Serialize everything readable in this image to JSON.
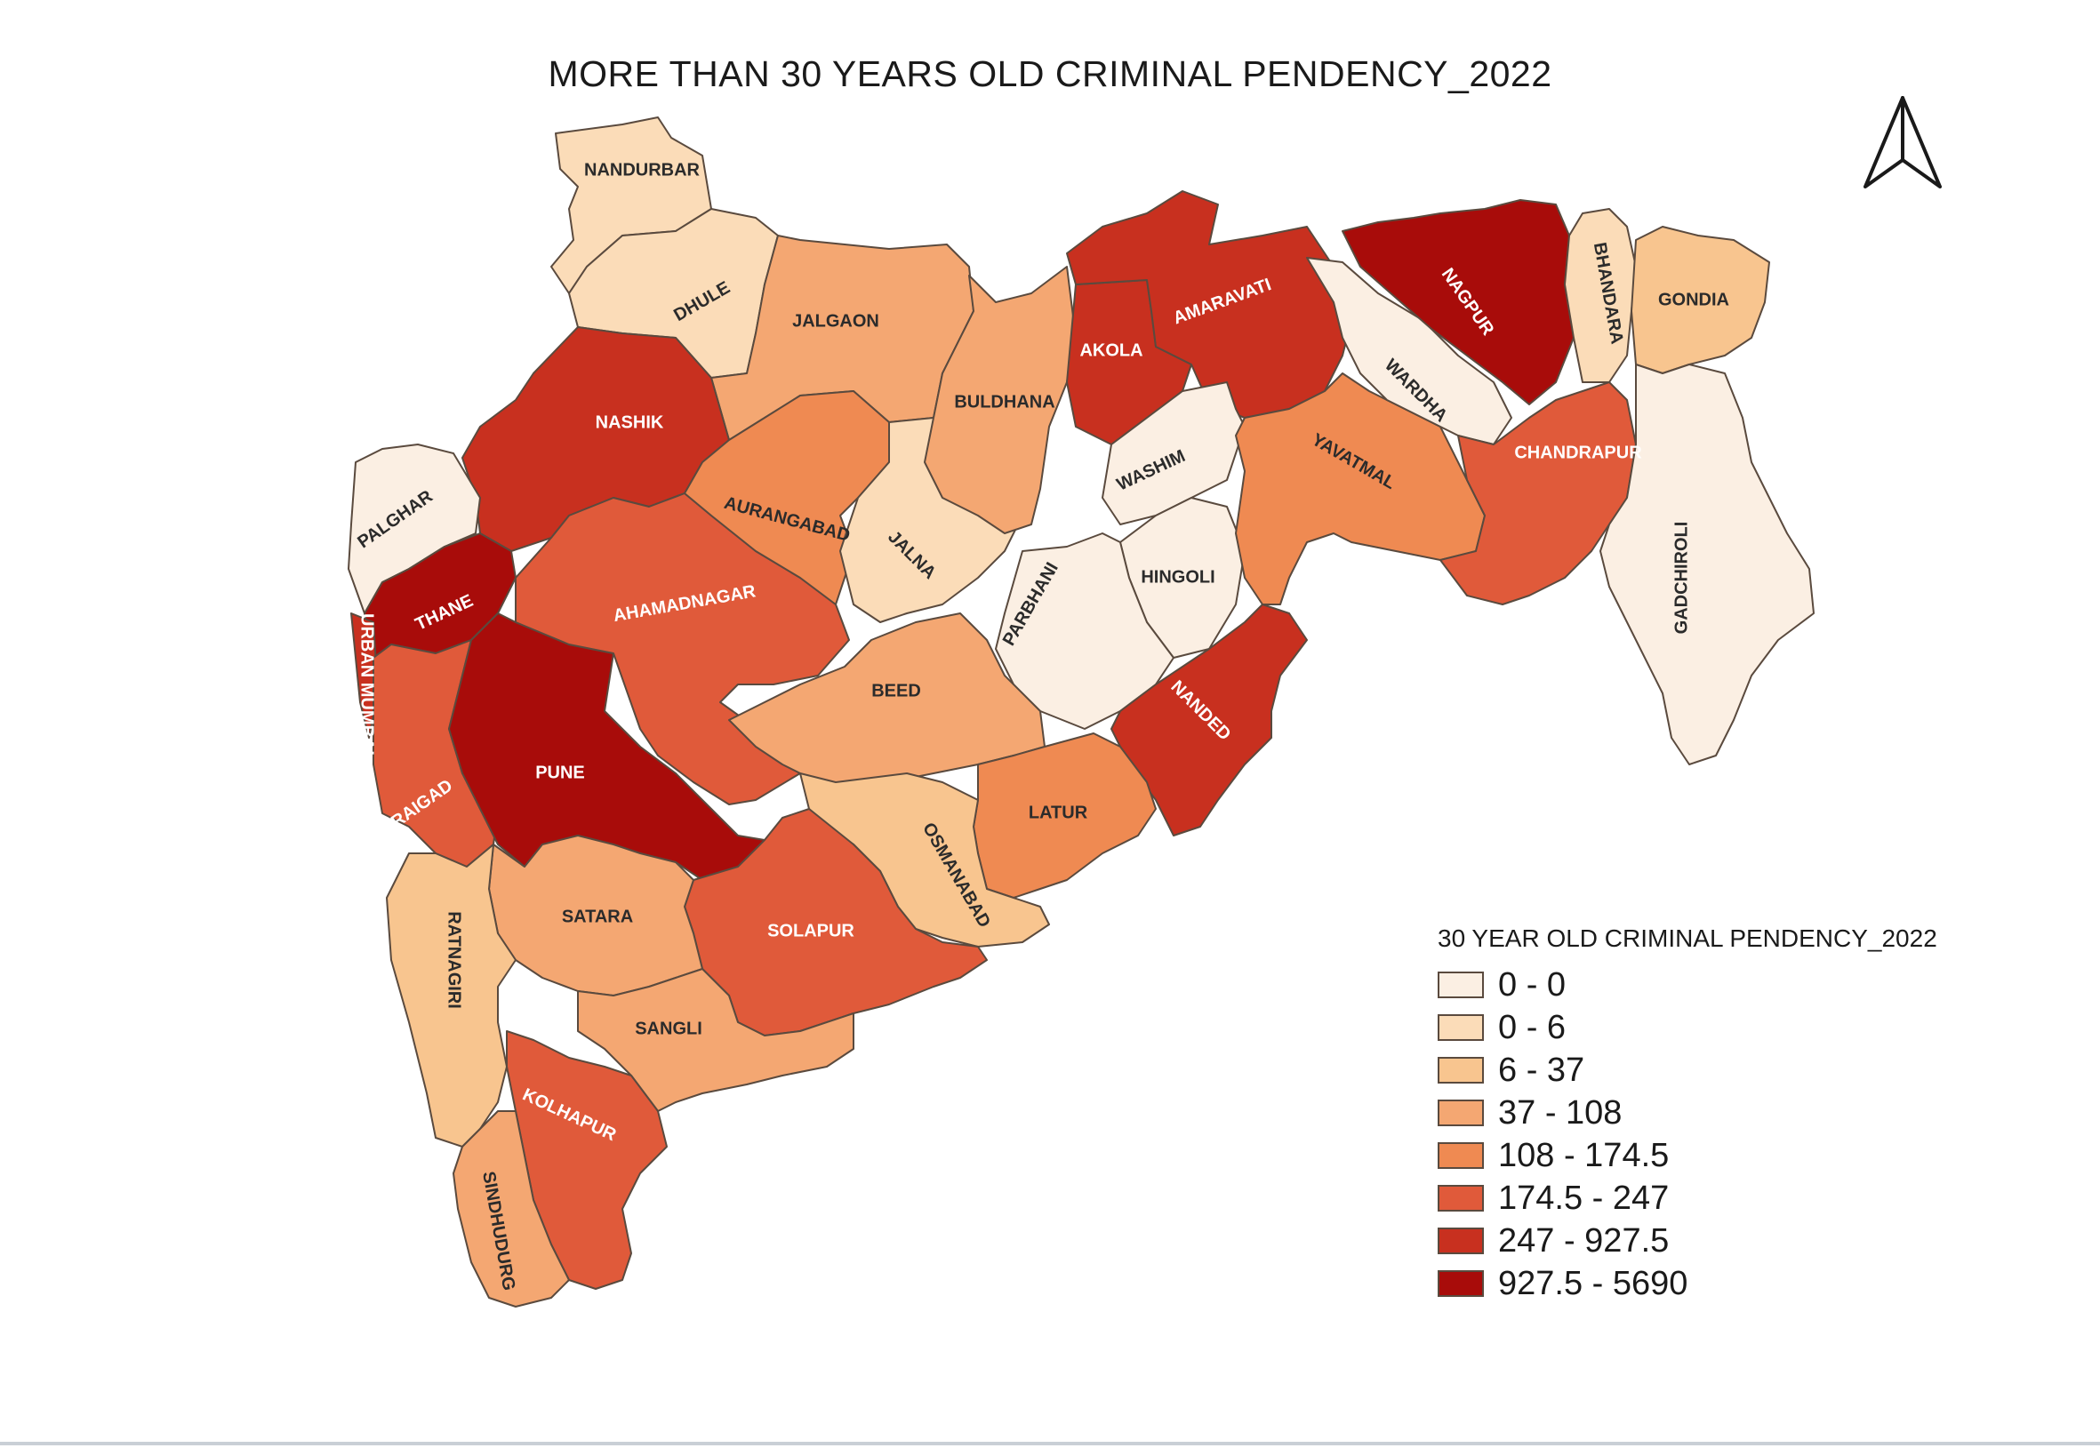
{
  "title": "MORE THAN 30 YEARS OLD CRIMINAL PENDENCY_2022",
  "legend": {
    "title": "30 YEAR OLD CRIMINAL PENDENCY_2022",
    "classes": [
      {
        "label": "0 - 0",
        "color": "#fbefe3"
      },
      {
        "label": "0 - 6",
        "color": "#fbdcb8"
      },
      {
        "label": "6 - 37",
        "color": "#f8c58f"
      },
      {
        "label": "37 - 108",
        "color": "#f4a772"
      },
      {
        "label": "108 - 174.5",
        "color": "#ef8a52"
      },
      {
        "label": "174.5 - 247",
        "color": "#e05a3a"
      },
      {
        "label": "247 - 927.5",
        "color": "#c8301f"
      },
      {
        "label": "927.5 - 5690",
        "color": "#a80c0a"
      }
    ]
  },
  "districts": [
    {
      "name": "NANDURBAR",
      "class": 1
    },
    {
      "name": "DHULE",
      "class": 1
    },
    {
      "name": "JALGAON",
      "class": 3
    },
    {
      "name": "NASHIK",
      "class": 6
    },
    {
      "name": "PALGHAR",
      "class": 0
    },
    {
      "name": "THANE",
      "class": 7
    },
    {
      "name": "URBAN MUMBAI",
      "class": 6
    },
    {
      "name": "RAIGAD",
      "class": 5
    },
    {
      "name": "PUNE",
      "class": 7
    },
    {
      "name": "AHAMADNAGAR",
      "class": 5
    },
    {
      "name": "AURANGABAD",
      "class": 4
    },
    {
      "name": "JALNA",
      "class": 1
    },
    {
      "name": "BULDHANA",
      "class": 3
    },
    {
      "name": "AKOLA",
      "class": 6
    },
    {
      "name": "AMARAVATI",
      "class": 6
    },
    {
      "name": "WASHIM",
      "class": 0
    },
    {
      "name": "HINGOLI",
      "class": 0
    },
    {
      "name": "PARBHANI",
      "class": 0
    },
    {
      "name": "BEED",
      "class": 3
    },
    {
      "name": "NANDED",
      "class": 6
    },
    {
      "name": "LATUR",
      "class": 4
    },
    {
      "name": "OSMANABAD",
      "class": 2
    },
    {
      "name": "SOLAPUR",
      "class": 5
    },
    {
      "name": "SATARA",
      "class": 3
    },
    {
      "name": "SANGLI",
      "class": 3
    },
    {
      "name": "RATNAGIRI",
      "class": 2
    },
    {
      "name": "KOLHAPUR",
      "class": 5
    },
    {
      "name": "SINDHUDURG",
      "class": 3
    },
    {
      "name": "YAVATMAL",
      "class": 4
    },
    {
      "name": "WARDHA",
      "class": 0
    },
    {
      "name": "NAGPUR",
      "class": 7
    },
    {
      "name": "BHANDARA",
      "class": 1
    },
    {
      "name": "GONDIA",
      "class": 2
    },
    {
      "name": "CHANDRAPUR",
      "class": 5
    },
    {
      "name": "GADCHIROLI",
      "class": 0
    }
  ]
}
